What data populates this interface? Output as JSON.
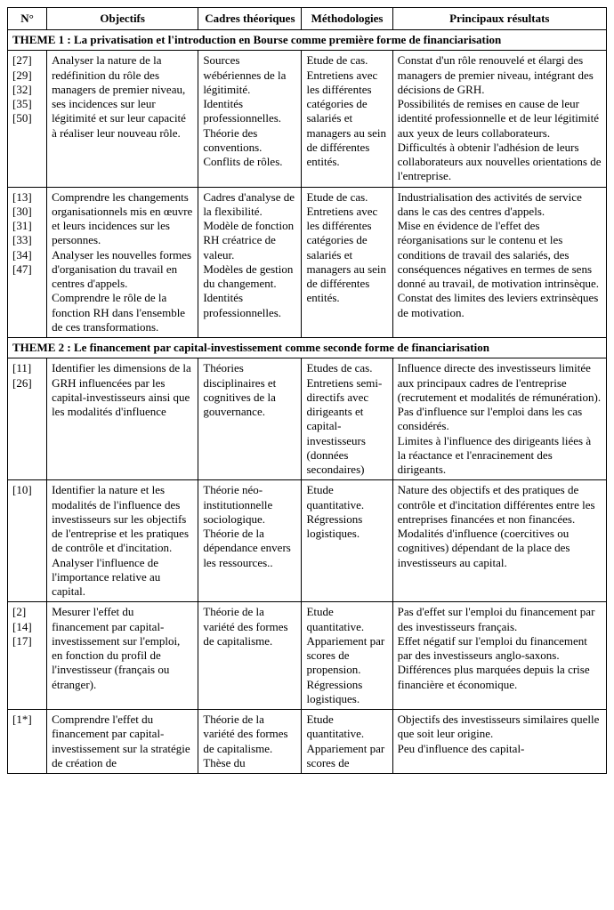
{
  "headers": {
    "num": "N°",
    "objectifs": "Objectifs",
    "cadres": "Cadres\nthéoriques",
    "methodo": "Méthodologies",
    "resultats": "Principaux résultats"
  },
  "theme1": "THEME 1 : La privatisation et l'introduction en Bourse comme première forme de financiarisation",
  "theme2": "THEME 2 : Le financement par capital-investissement comme seconde forme de financiarisation",
  "rows": [
    {
      "refs": "[27]\n[29]\n[32]\n[35]\n[50]",
      "objectifs": "Analyser la nature de la redéfinition du rôle des managers de premier niveau, ses incidences sur leur légitimité et sur leur capacité à réaliser leur nouveau rôle.",
      "cadres": "Sources wébériennes de la légitimité.\nIdentités professionnelles.\nThéorie des conventions.\nConflits de rôles.",
      "methodo": "Etude de cas.\nEntretiens avec les différentes catégories de salariés et managers au sein de différentes entités.",
      "resultats": "Constat d'un rôle renouvelé et élargi des managers de premier niveau, intégrant des décisions de GRH.\nPossibilités de remises en cause de leur identité professionnelle et de leur légitimité aux yeux de leurs collaborateurs.\nDifficultés à obtenir l'adhésion de leurs collaborateurs aux nouvelles orientations de l'entreprise."
    },
    {
      "refs": "[13]\n[30]\n[31]\n[33]\n[34]\n[47]",
      "objectifs": "Comprendre les changements organisationnels mis en œuvre et leurs incidences sur les personnes.\nAnalyser les nouvelles formes d'organisation du travail en centres d'appels.\nComprendre le rôle de la fonction RH dans l'ensemble de ces transformations.",
      "cadres": "Cadres d'analyse de la flexibilité.\nModèle de fonction RH créatrice de valeur.\nModèles de gestion du changement.\nIdentités professionnelles.",
      "methodo": "Etude de cas.\nEntretiens avec les différentes catégories de salariés et managers au sein de différentes entités.",
      "resultats": "Industrialisation des activités de service dans le cas des centres d'appels.\nMise en évidence de l'effet des réorganisations sur le contenu et les conditions de travail des salariés, des conséquences négatives en termes de sens donné au travail, de motivation intrinsèque.\nConstat des limites des leviers extrinsèques de motivation."
    },
    {
      "refs": "[11]\n[26]",
      "objectifs": "Identifier les dimensions de la GRH influencées par les capital-investisseurs ainsi que les modalités d'influence",
      "cadres": "Théories disciplinaires et cognitives de la gouvernance.",
      "methodo": "Etudes de cas.\nEntretiens semi-directifs avec dirigeants et capital-investisseurs (données secondaires)",
      "resultats": "Influence directe des investisseurs limitée aux principaux cadres de l'entreprise (recrutement et modalités de rémunération).\nPas d'influence sur l'emploi dans les cas considérés.\nLimites à l'influence des dirigeants liées à la réactance et l'enracinement des dirigeants."
    },
    {
      "refs": "[10]",
      "objectifs": "Identifier la nature et les modalités de l'influence des investisseurs sur les objectifs de l'entreprise et les pratiques de contrôle et d'incitation.\nAnalyser l'influence de l'importance relative au capital.",
      "cadres": "Théorie néo-institutionnelle sociologique.\nThéorie de la dépendance envers les ressources..",
      "methodo": "Etude quantitative.\nRégressions logistiques.",
      "resultats": "Nature des objectifs et des pratiques de contrôle et d'incitation différentes entre les entreprises financées et non financées.\nModalités d'influence (coercitives ou cognitives) dépendant de la place des investisseurs au capital."
    },
    {
      "refs": "[2]\n[14]\n[17]",
      "objectifs": "Mesurer l'effet du financement par capital-investissement sur l'emploi, en fonction du profil de l'investisseur (français ou étranger).",
      "cadres": "Théorie de la variété des formes de capitalisme.",
      "methodo": "Etude quantitative.\nAppariement par scores de propension.\nRégressions logistiques.",
      "resultats": "Pas d'effet sur l'emploi du financement par des investisseurs français.\nEffet négatif sur l'emploi du financement par des investisseurs anglo-saxons.\nDifférences plus marquées depuis la crise financière et économique."
    },
    {
      "refs": "[1*]",
      "objectifs": "Comprendre l'effet du financement par capital-investissement sur la stratégie de création de",
      "cadres": "Théorie de la variété des formes de capitalisme.\nThèse du",
      "methodo": "Etude quantitative.\nAppariement par scores de",
      "resultats": "Objectifs des investisseurs similaires quelle que soit leur origine.\nPeu d'influence des capital-"
    }
  ]
}
